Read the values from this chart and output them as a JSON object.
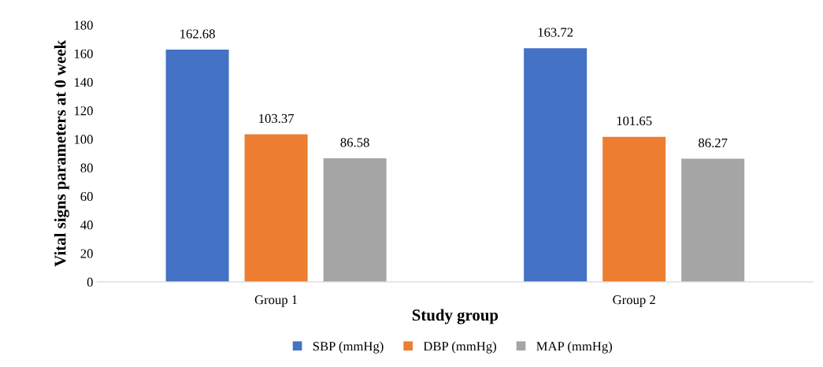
{
  "chart_data": {
    "type": "bar",
    "xlabel": "Study group",
    "ylabel": "Vital signs parameters at 0 week",
    "categories": [
      "Group 1",
      "Group 2"
    ],
    "series": [
      {
        "name": "SBP (mmHg)",
        "color": "#4472c4",
        "values": [
          162.68,
          163.72
        ]
      },
      {
        "name": "DBP (mmHg)",
        "color": "#ed7d31",
        "values": [
          103.37,
          101.65
        ]
      },
      {
        "name": "MAP (mmHg)",
        "color": "#a5a5a5",
        "values": [
          86.58,
          86.27
        ]
      }
    ],
    "ylim": [
      0,
      180
    ],
    "yticks": [
      0,
      20,
      40,
      60,
      80,
      100,
      120,
      140,
      160,
      180
    ],
    "data_labels": true,
    "grid": false,
    "legend": "bottom"
  }
}
